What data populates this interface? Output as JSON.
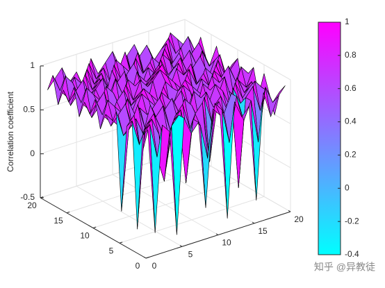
{
  "chart_data": {
    "type": "surface",
    "zlabel": "Correlation coefficient",
    "x": [
      1,
      2,
      3,
      4,
      5,
      6,
      7,
      8,
      9,
      10,
      11,
      12,
      13,
      14,
      15,
      16,
      17,
      18,
      19,
      20
    ],
    "y": [
      1,
      2,
      3,
      4,
      5,
      6,
      7,
      8,
      9,
      10,
      11,
      12,
      13,
      14,
      15,
      16,
      17,
      18,
      19,
      20
    ],
    "z": [
      [
        0.9,
        -0.3,
        0.9,
        0.8,
        -0.4,
        0.9,
        0.7,
        0.8,
        -0.2,
        0.9,
        0.8,
        -0.4,
        0.9,
        0.7,
        0.8,
        -0.3,
        0.9,
        0.6,
        0.8,
        0.9
      ],
      [
        0.8,
        0.9,
        0.5,
        0.2,
        0.8,
        0.9,
        0.1,
        0.8,
        0.7,
        0.3,
        0.9,
        0.8,
        0.4,
        0.9,
        0.6,
        0.8,
        0.3,
        0.9,
        0.7,
        0.8
      ],
      [
        -0.3,
        0.8,
        0.9,
        0.7,
        0.3,
        0.8,
        0.9,
        0.5,
        0.8,
        0.9,
        0.2,
        0.8,
        0.7,
        0.9,
        -0.2,
        0.8,
        0.9,
        0.6,
        0.8,
        0.5
      ],
      [
        0.9,
        0.6,
        0.8,
        0.9,
        0.7,
        0.6,
        0.8,
        0.9,
        0.6,
        0.7,
        0.9,
        0.6,
        0.8,
        0.5,
        0.9,
        0.7,
        0.6,
        0.9,
        0.8,
        0.7
      ],
      [
        0.8,
        0.9,
        0.4,
        0.7,
        0.8,
        0.9,
        0.6,
        0.7,
        0.9,
        0.8,
        0.6,
        0.9,
        0.7,
        0.8,
        0.6,
        0.9,
        0.7,
        0.8,
        0.6,
        0.9
      ],
      [
        -0.2,
        0.7,
        0.8,
        0.6,
        0.9,
        0.7,
        0.8,
        0.9,
        0.7,
        0.6,
        0.9,
        0.8,
        0.7,
        0.9,
        0.8,
        0.6,
        0.9,
        0.7,
        0.8,
        0.6
      ],
      [
        0.9,
        0.6,
        0.7,
        0.9,
        0.6,
        0.8,
        0.9,
        0.7,
        0.8,
        0.9,
        0.7,
        0.6,
        0.9,
        0.8,
        0.7,
        0.9,
        0.6,
        0.8,
        0.7,
        0.9
      ],
      [
        0.7,
        0.8,
        0.9,
        0.6,
        0.8,
        0.7,
        0.6,
        0.9,
        0.8,
        0.7,
        0.9,
        0.8,
        0.6,
        0.7,
        0.9,
        0.8,
        0.7,
        0.6,
        0.9,
        0.8
      ],
      [
        0.8,
        0.7,
        0.6,
        0.9,
        0.7,
        0.9,
        0.8,
        0.7,
        0.9,
        0.6,
        0.8,
        0.9,
        0.8,
        0.7,
        0.6,
        0.9,
        0.8,
        0.9,
        0.7,
        0.6
      ],
      [
        0.6,
        0.9,
        0.8,
        0.7,
        0.6,
        0.8,
        0.9,
        0.8,
        0.7,
        0.9,
        0.8,
        0.7,
        0.9,
        0.6,
        0.8,
        0.7,
        0.9,
        0.7,
        0.8,
        0.9
      ],
      [
        0.9,
        0.7,
        0.6,
        0.8,
        0.9,
        0.7,
        0.8,
        0.6,
        0.9,
        1.0,
        0.9,
        0.8,
        0.7,
        0.9,
        0.7,
        0.8,
        0.6,
        0.9,
        0.7,
        0.8
      ],
      [
        0.7,
        0.8,
        0.9,
        0.6,
        0.7,
        0.9,
        0.7,
        0.9,
        0.8,
        0.9,
        1.0,
        0.7,
        0.9,
        0.8,
        0.9,
        0.6,
        0.8,
        0.7,
        0.9,
        0.6
      ],
      [
        0.8,
        0.6,
        0.7,
        0.9,
        0.8,
        0.6,
        0.9,
        0.8,
        0.7,
        0.8,
        0.9,
        0.8,
        0.6,
        0.9,
        0.7,
        0.8,
        0.9,
        0.6,
        0.8,
        0.7
      ],
      [
        0.6,
        0.9,
        0.8,
        0.7,
        0.6,
        0.9,
        0.7,
        0.6,
        0.9,
        0.7,
        0.8,
        0.9,
        0.7,
        0.8,
        0.9,
        0.7,
        0.6,
        0.9,
        0.7,
        0.9
      ],
      [
        0.9,
        0.7,
        0.6,
        0.8,
        0.9,
        0.7,
        0.8,
        0.9,
        0.6,
        0.8,
        0.7,
        0.6,
        0.9,
        0.7,
        0.6,
        0.8,
        0.9,
        0.7,
        0.8,
        0.6
      ],
      [
        0.7,
        0.8,
        0.9,
        0.7,
        0.8,
        0.6,
        0.9,
        0.7,
        0.8,
        0.9,
        0.6,
        0.8,
        0.7,
        0.9,
        0.8,
        0.6,
        0.7,
        0.8,
        0.9,
        0.7
      ],
      [
        0.8,
        0.6,
        0.7,
        0.9,
        0.7,
        0.8,
        0.6,
        0.9,
        0.7,
        0.6,
        0.9,
        0.7,
        0.8,
        0.6,
        0.9,
        0.7,
        0.8,
        0.6,
        0.7,
        0.9
      ],
      [
        0.6,
        0.9,
        0.8,
        0.6,
        0.9,
        0.7,
        0.8,
        0.6,
        0.9,
        0.8,
        0.7,
        0.9,
        0.6,
        0.8,
        0.7,
        0.9,
        0.6,
        0.8,
        0.9,
        0.7
      ],
      [
        0.9,
        0.7,
        0.6,
        0.8,
        0.7,
        0.9,
        0.7,
        0.8,
        0.6,
        0.7,
        0.9,
        0.6,
        0.8,
        0.9,
        0.7,
        0.8,
        0.9,
        0.7,
        0.6,
        0.8
      ],
      [
        0.7,
        0.8,
        0.9,
        0.7,
        0.8,
        0.6,
        0.9,
        0.7,
        0.8,
        0.9,
        0.7,
        0.8,
        0.9,
        0.7,
        0.8,
        0.6,
        0.7,
        0.9,
        0.8,
        0.7
      ]
    ],
    "xlim": [
      0,
      20
    ],
    "ylim": [
      0,
      20
    ],
    "zlim": [
      -0.5,
      1
    ],
    "xticks": [
      0,
      5,
      10,
      15,
      20
    ],
    "yticks": [
      0,
      5,
      10,
      15,
      20
    ],
    "zticks": [
      -0.5,
      0,
      0.5,
      1
    ],
    "grid": true,
    "colormap": [
      "#00ffff",
      "#ff00ff"
    ],
    "clim": [
      -0.4,
      1
    ],
    "colorbar_ticks": [
      -0.4,
      -0.2,
      0,
      0.2,
      0.4,
      0.6,
      0.8,
      1
    ]
  },
  "watermark": "知乎 @异教徒"
}
